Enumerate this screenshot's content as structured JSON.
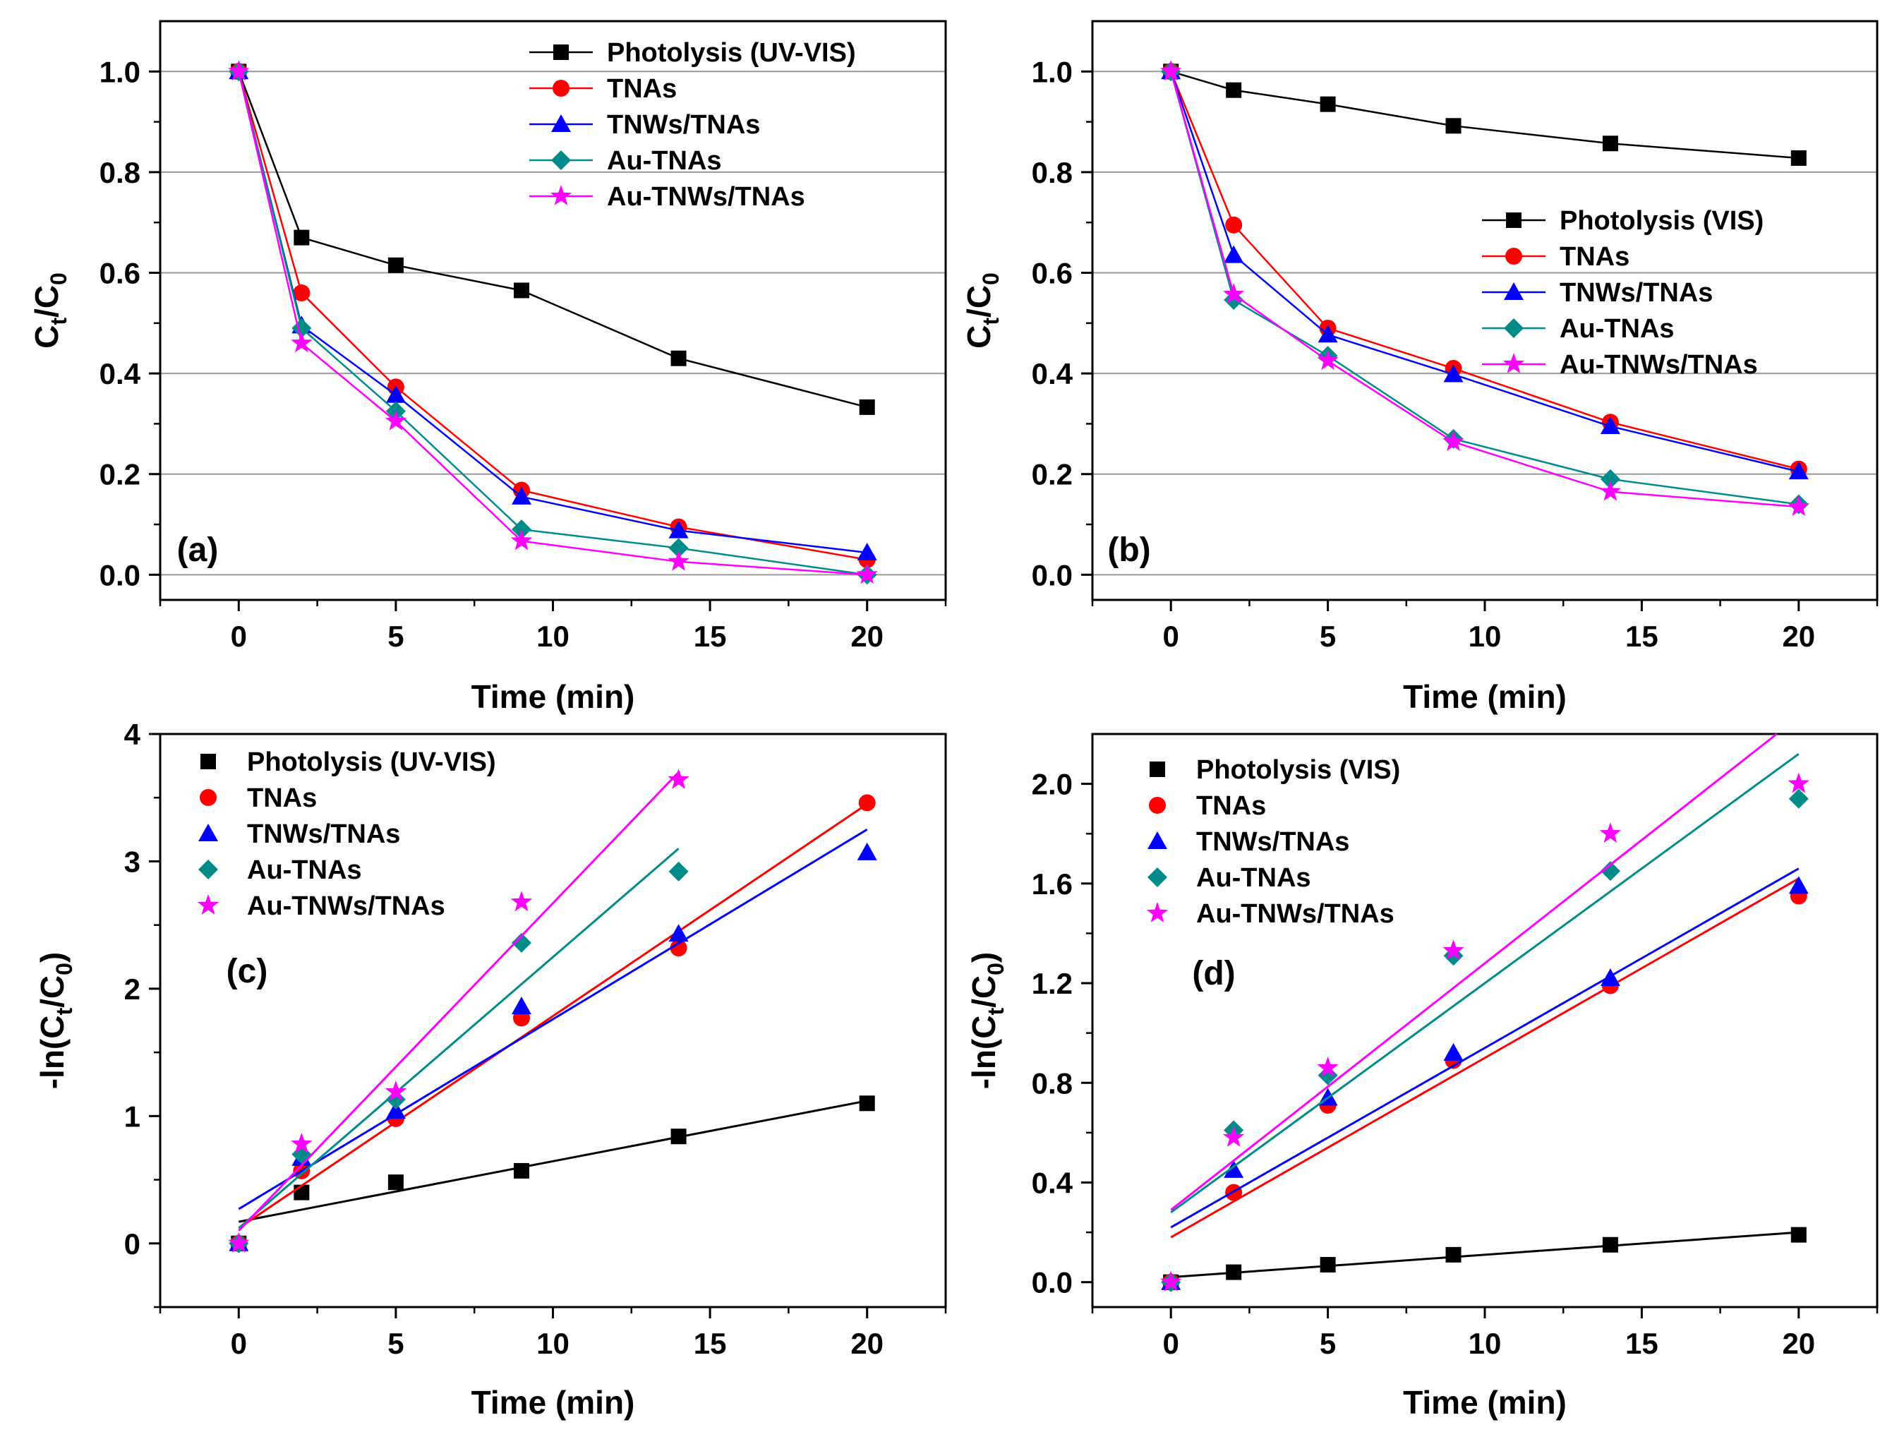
{
  "chart_data": [
    {
      "type": "line",
      "panel_label": "(a)",
      "xlabel": "Time (min)",
      "ylabel_main": "C",
      "ylabel_sub1": "t",
      "ylabel_mid": "/C",
      "ylabel_sub2": "0",
      "xlim": [
        -2.5,
        22.5
      ],
      "ylim": [
        -0.05,
        1.1
      ],
      "xticks": [
        0,
        5,
        10,
        15,
        20
      ],
      "xtick_labels": [
        "0",
        "5",
        "10",
        "15",
        "20"
      ],
      "yticks": [
        0.0,
        0.2,
        0.4,
        0.6,
        0.8,
        1.0
      ],
      "ytick_labels": [
        "0.0",
        "0.2",
        "0.4",
        "0.6",
        "0.8",
        "1.0"
      ],
      "grid": "horizontal",
      "legend_position": "top-right",
      "x": [
        0,
        2,
        5,
        9,
        14,
        20
      ],
      "series": [
        {
          "name": "Photolysis (UV-VIS)",
          "color": "#000000",
          "marker": "square",
          "values": [
            1.0,
            0.67,
            0.615,
            0.565,
            0.43,
            0.333
          ]
        },
        {
          "name": "TNAs",
          "color": "#ff0000",
          "marker": "circle",
          "values": [
            1.0,
            0.56,
            0.373,
            0.168,
            0.095,
            0.03
          ]
        },
        {
          "name": "TNWs/TNAs",
          "color": "#0000ff",
          "marker": "triangle",
          "values": [
            1.0,
            0.495,
            0.357,
            0.155,
            0.088,
            0.044
          ]
        },
        {
          "name": "Au-TNAs",
          "color": "#008b8b",
          "marker": "diamond",
          "values": [
            1.0,
            0.49,
            0.325,
            0.09,
            0.053,
            0.0
          ]
        },
        {
          "name": "Au-TNWs/TNAs",
          "color": "#ff00ff",
          "marker": "star",
          "values": [
            1.0,
            0.46,
            0.305,
            0.067,
            0.026,
            0.0
          ]
        }
      ]
    },
    {
      "type": "line",
      "panel_label": "(b)",
      "xlabel": "Time (min)",
      "ylabel_main": "C",
      "ylabel_sub1": "t",
      "ylabel_mid": "/C",
      "ylabel_sub2": "0",
      "xlim": [
        -2.5,
        22.5
      ],
      "ylim": [
        -0.05,
        1.1
      ],
      "xticks": [
        0,
        5,
        10,
        15,
        20
      ],
      "xtick_labels": [
        "0",
        "5",
        "10",
        "15",
        "20"
      ],
      "yticks": [
        0.0,
        0.2,
        0.4,
        0.6,
        0.8,
        1.0
      ],
      "ytick_labels": [
        "0.0",
        "0.2",
        "0.4",
        "0.6",
        "0.8",
        "1.0"
      ],
      "grid": "horizontal",
      "legend_position": "center-right",
      "x": [
        0,
        2,
        5,
        9,
        14,
        20
      ],
      "series": [
        {
          "name": "Photolysis (VIS)",
          "color": "#000000",
          "marker": "square",
          "values": [
            1.0,
            0.963,
            0.935,
            0.892,
            0.857,
            0.828
          ]
        },
        {
          "name": "TNAs",
          "color": "#ff0000",
          "marker": "circle",
          "values": [
            1.0,
            0.695,
            0.49,
            0.41,
            0.303,
            0.21
          ]
        },
        {
          "name": "TNWs/TNAs",
          "color": "#0000ff",
          "marker": "triangle",
          "values": [
            1.0,
            0.635,
            0.477,
            0.398,
            0.295,
            0.205
          ]
        },
        {
          "name": "Au-TNAs",
          "color": "#008b8b",
          "marker": "diamond",
          "values": [
            1.0,
            0.546,
            0.435,
            0.27,
            0.19,
            0.14
          ]
        },
        {
          "name": "Au-TNWs/TNAs",
          "color": "#ff00ff",
          "marker": "star",
          "values": [
            1.0,
            0.557,
            0.425,
            0.264,
            0.165,
            0.135
          ]
        }
      ]
    },
    {
      "type": "scatter",
      "panel_label": "(c)",
      "xlabel": "Time (min)",
      "ylabel_main": "-ln(C",
      "ylabel_sub1": "t",
      "ylabel_mid": "/C",
      "ylabel_sub2": "0",
      "ylabel_end": ")",
      "xlim": [
        -2.5,
        22.5
      ],
      "ylim": [
        -0.5,
        4.0
      ],
      "xticks": [
        0,
        5,
        10,
        15,
        20
      ],
      "xtick_labels": [
        "0",
        "5",
        "10",
        "15",
        "20"
      ],
      "yticks": [
        0,
        1,
        2,
        3,
        4
      ],
      "ytick_labels": [
        "0",
        "1",
        "2",
        "3",
        "4"
      ],
      "grid": "none",
      "legend_position": "top-left",
      "x": [
        0,
        2,
        5,
        9,
        14,
        20
      ],
      "series": [
        {
          "name": "Photolysis (UV-VIS)",
          "color": "#000000",
          "marker": "square",
          "values": [
            0,
            0.4,
            0.48,
            0.57,
            0.84,
            1.1
          ],
          "fit": {
            "x0": 0,
            "y0": 0.17,
            "x1": 20,
            "y1": 1.12
          }
        },
        {
          "name": "TNAs",
          "color": "#ff0000",
          "marker": "circle",
          "values": [
            0,
            0.57,
            0.98,
            1.77,
            2.32,
            3.46
          ],
          "fit": {
            "x0": 0,
            "y0": 0.12,
            "x1": 20,
            "y1": 3.45
          }
        },
        {
          "name": "TNWs/TNAs",
          "color": "#0000ff",
          "marker": "triangle",
          "values": [
            0,
            0.67,
            1.04,
            1.86,
            2.43,
            3.07
          ],
          "fit": {
            "x0": 0,
            "y0": 0.27,
            "x1": 20,
            "y1": 3.25
          }
        },
        {
          "name": "Au-TNAs",
          "color": "#008b8b",
          "marker": "diamond",
          "values": [
            0,
            0.7,
            1.13,
            2.36,
            2.92,
            null
          ],
          "fit": {
            "x0": 0,
            "y0": 0.12,
            "x1": 14,
            "y1": 3.1
          }
        },
        {
          "name": "Au-TNWs/TNAs",
          "color": "#ff00ff",
          "marker": "star",
          "values": [
            0,
            0.78,
            1.19,
            2.68,
            3.64,
            null
          ],
          "fit": {
            "x0": 0,
            "y0": 0.1,
            "x1": 14,
            "y1": 3.7
          }
        }
      ]
    },
    {
      "type": "scatter",
      "panel_label": "(d)",
      "xlabel": "Time (min)",
      "ylabel_main": "-ln(C",
      "ylabel_sub1": "t",
      "ylabel_mid": "/C",
      "ylabel_sub2": "0",
      "ylabel_end": ")",
      "xlim": [
        -2.5,
        22.5
      ],
      "ylim": [
        -0.1,
        2.2
      ],
      "xticks": [
        0,
        5,
        10,
        15,
        20
      ],
      "xtick_labels": [
        "0",
        "5",
        "10",
        "15",
        "20"
      ],
      "yticks": [
        0.0,
        0.4,
        0.8,
        1.2,
        1.6,
        2.0
      ],
      "ytick_labels": [
        "0.0",
        "0.4",
        "0.8",
        "1.2",
        "1.6",
        "2.0"
      ],
      "grid": "none",
      "legend_position": "top-left",
      "x": [
        0,
        2,
        5,
        9,
        14,
        20
      ],
      "series": [
        {
          "name": "Photolysis (VIS)",
          "color": "#000000",
          "marker": "square",
          "values": [
            0,
            0.04,
            0.07,
            0.11,
            0.15,
            0.19
          ],
          "fit": {
            "x0": 0,
            "y0": 0.02,
            "x1": 20,
            "y1": 0.2
          }
        },
        {
          "name": "TNAs",
          "color": "#ff0000",
          "marker": "circle",
          "values": [
            0,
            0.36,
            0.71,
            0.89,
            1.19,
            1.55
          ],
          "fit": {
            "x0": 0,
            "y0": 0.18,
            "x1": 20,
            "y1": 1.62
          }
        },
        {
          "name": "TNWs/TNAs",
          "color": "#0000ff",
          "marker": "triangle",
          "values": [
            0,
            0.45,
            0.74,
            0.92,
            1.22,
            1.59
          ],
          "fit": {
            "x0": 0,
            "y0": 0.22,
            "x1": 20,
            "y1": 1.66
          }
        },
        {
          "name": "Au-TNAs",
          "color": "#008b8b",
          "marker": "diamond",
          "values": [
            0,
            0.61,
            0.83,
            1.31,
            1.65,
            1.94
          ],
          "fit": {
            "x0": 0,
            "y0": 0.28,
            "x1": 20,
            "y1": 2.12
          }
        },
        {
          "name": "Au-TNWs/TNAs",
          "color": "#ff00ff",
          "marker": "star",
          "values": [
            0,
            0.58,
            0.86,
            1.33,
            1.8,
            2.0
          ],
          "fit": {
            "x0": 0,
            "y0": 0.29,
            "x1": 19.3,
            "y1": 2.2
          }
        }
      ]
    }
  ]
}
